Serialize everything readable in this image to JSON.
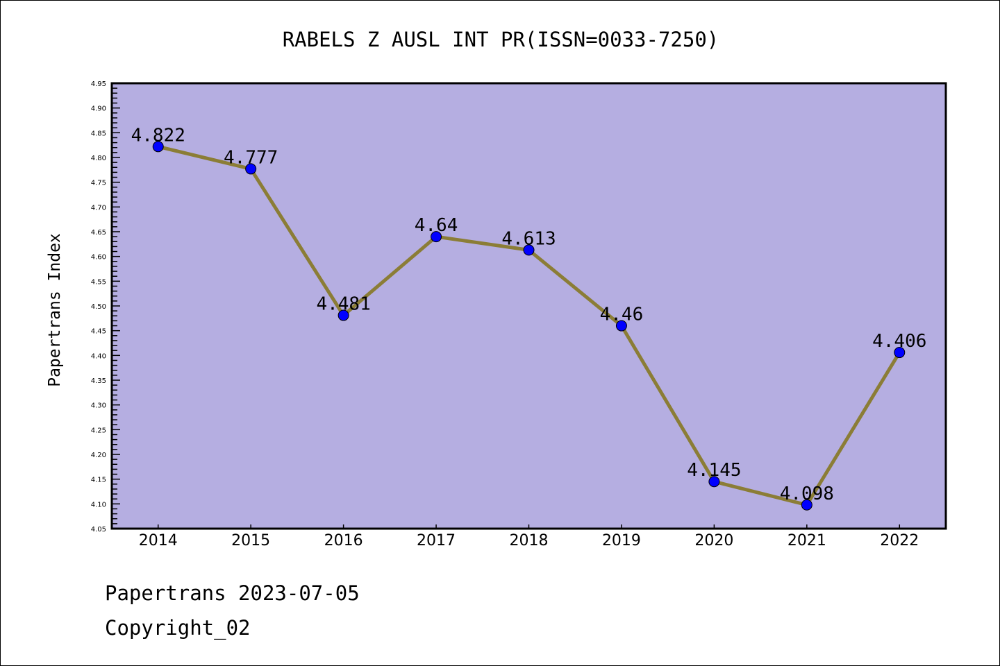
{
  "chart_data": {
    "type": "line",
    "title": "RABELS Z AUSL INT PR(ISSN=0033-7250)",
    "xlabel": "",
    "ylabel": "Papertrans Index",
    "categories": [
      "2014",
      "2015",
      "2016",
      "2017",
      "2018",
      "2019",
      "2020",
      "2021",
      "2022"
    ],
    "series": [
      {
        "name": "Papertrans Index",
        "values": [
          4.822,
          4.777,
          4.481,
          4.64,
          4.613,
          4.46,
          4.145,
          4.098,
          4.406
        ]
      }
    ],
    "data_labels": [
      "4.822",
      "4.777",
      "4.481",
      "4.64",
      "4.613",
      "4.46",
      "4.145",
      "4.098",
      "4.406"
    ],
    "ylim": [
      4.05,
      4.95
    ],
    "y_ticks": [
      "4.05",
      "4.10",
      "4.15",
      "4.20",
      "4.25",
      "4.30",
      "4.35",
      "4.40",
      "4.45",
      "4.50",
      "4.55",
      "4.60",
      "4.65",
      "4.70",
      "4.75",
      "4.80",
      "4.85",
      "4.90",
      "4.95"
    ],
    "grid": false,
    "legend": "none",
    "colors": {
      "plot_bg": "#b5aee1",
      "line": "#8b7d36",
      "marker": "#0000ff"
    }
  },
  "footer": {
    "date_line": "Papertrans 2023-07-05",
    "copyright": "Copyright_02"
  }
}
